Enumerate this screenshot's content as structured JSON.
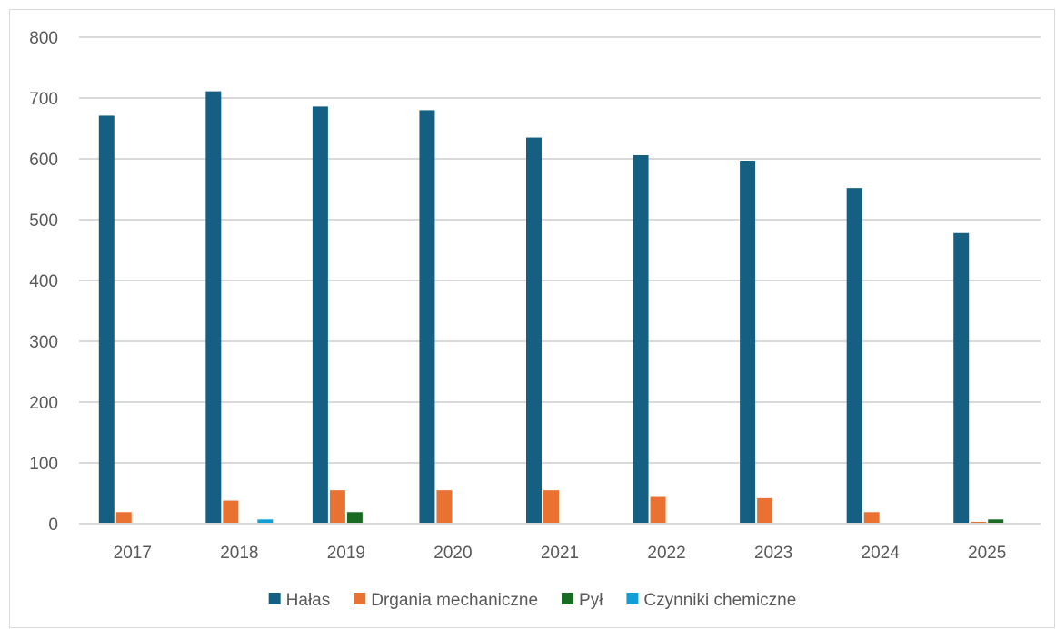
{
  "chart_data": {
    "type": "bar",
    "title": "",
    "xlabel": "",
    "ylabel": "",
    "categories": [
      "2017",
      "2018",
      "2019",
      "2020",
      "2021",
      "2022",
      "2023",
      "2024",
      "2025"
    ],
    "ylim": [
      0,
      800
    ],
    "yticks": [
      0,
      100,
      200,
      300,
      400,
      500,
      600,
      700,
      800
    ],
    "grid": "horizontal",
    "legend_position": "bottom",
    "series": [
      {
        "name": "Hałas",
        "color": "#156082",
        "values": [
          671,
          711,
          686,
          680,
          635,
          606,
          597,
          552,
          478
        ]
      },
      {
        "name": "Drgania mechaniczne",
        "color": "#E97132",
        "values": [
          19,
          38,
          55,
          55,
          55,
          44,
          42,
          19,
          3
        ]
      },
      {
        "name": "Pył",
        "color": "#196B24",
        "values": [
          0,
          0,
          19,
          0,
          0,
          0,
          0,
          0,
          7
        ]
      },
      {
        "name": "Czynniki chemiczne",
        "color": "#0F9ED5",
        "values": [
          0,
          7,
          0,
          0,
          0,
          0,
          0,
          0,
          0
        ]
      }
    ]
  }
}
